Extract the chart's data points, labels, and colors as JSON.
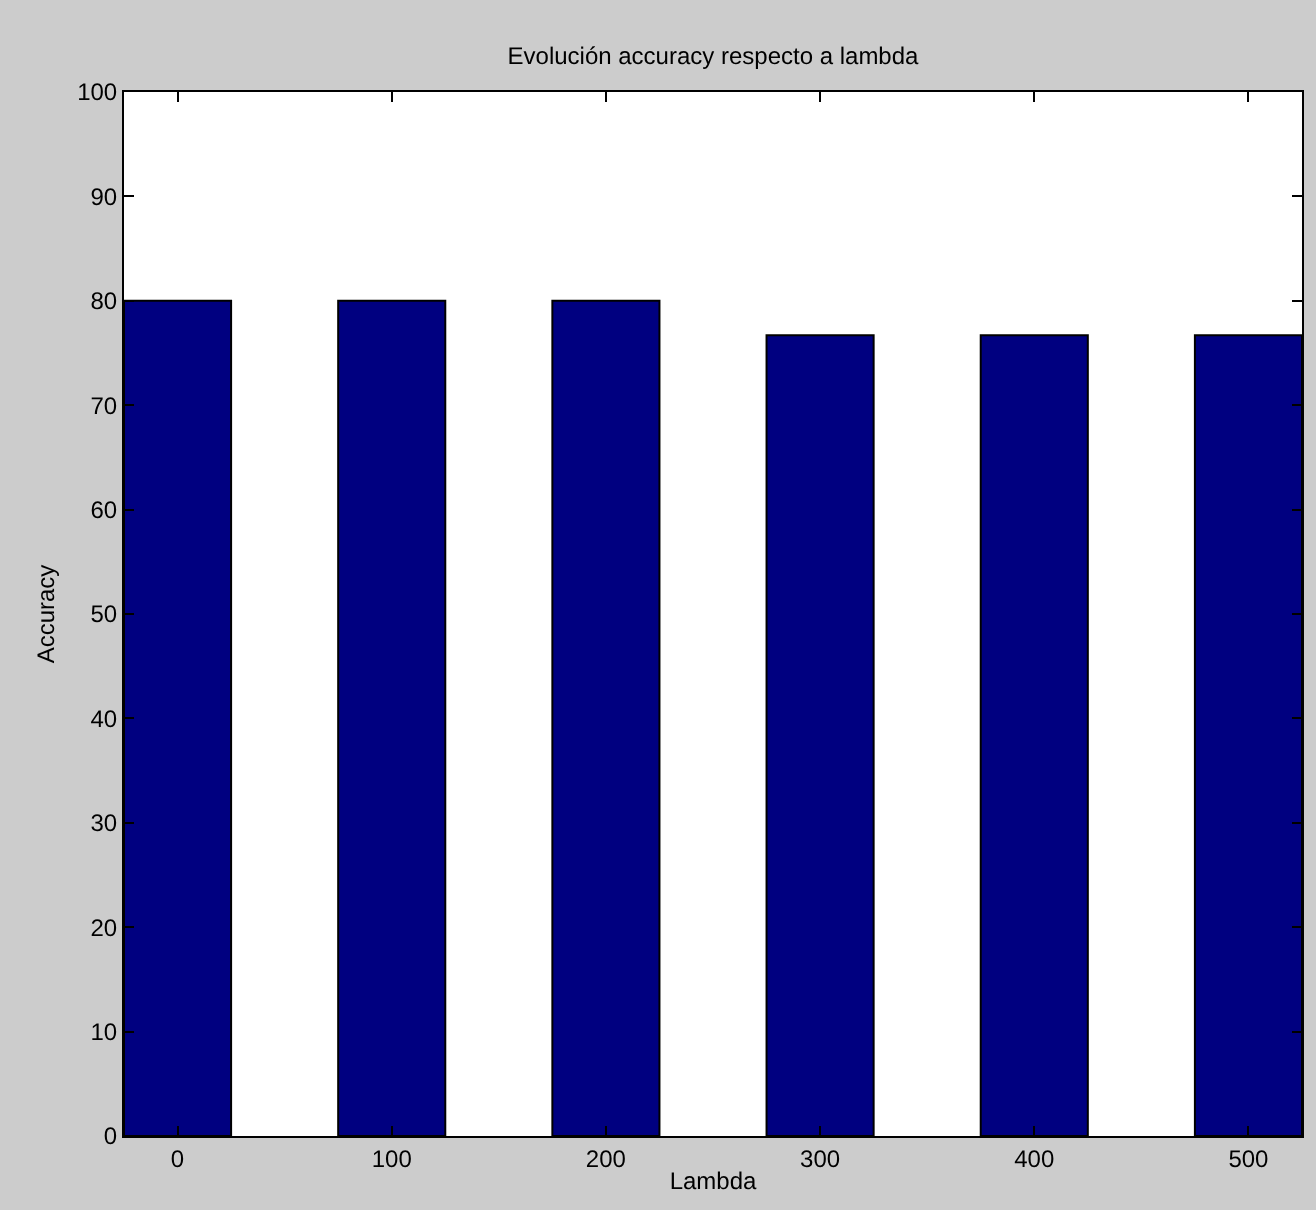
{
  "chart_data": {
    "type": "bar",
    "title": "Evolución accuracy respecto a lambda",
    "xlabel": "Lambda",
    "ylabel": "Accuracy",
    "x": [
      0,
      100,
      200,
      300,
      400,
      500
    ],
    "values": [
      80,
      80,
      80,
      76.7,
      76.7,
      76.7
    ],
    "color": "#000080",
    "xlim": [
      -25,
      525
    ],
    "xticks": [
      0,
      100,
      200,
      300,
      400,
      500
    ],
    "ylim": [
      0,
      100
    ],
    "yticks": [
      0,
      10,
      20,
      30,
      40,
      50,
      60,
      70,
      80,
      90,
      100
    ]
  }
}
